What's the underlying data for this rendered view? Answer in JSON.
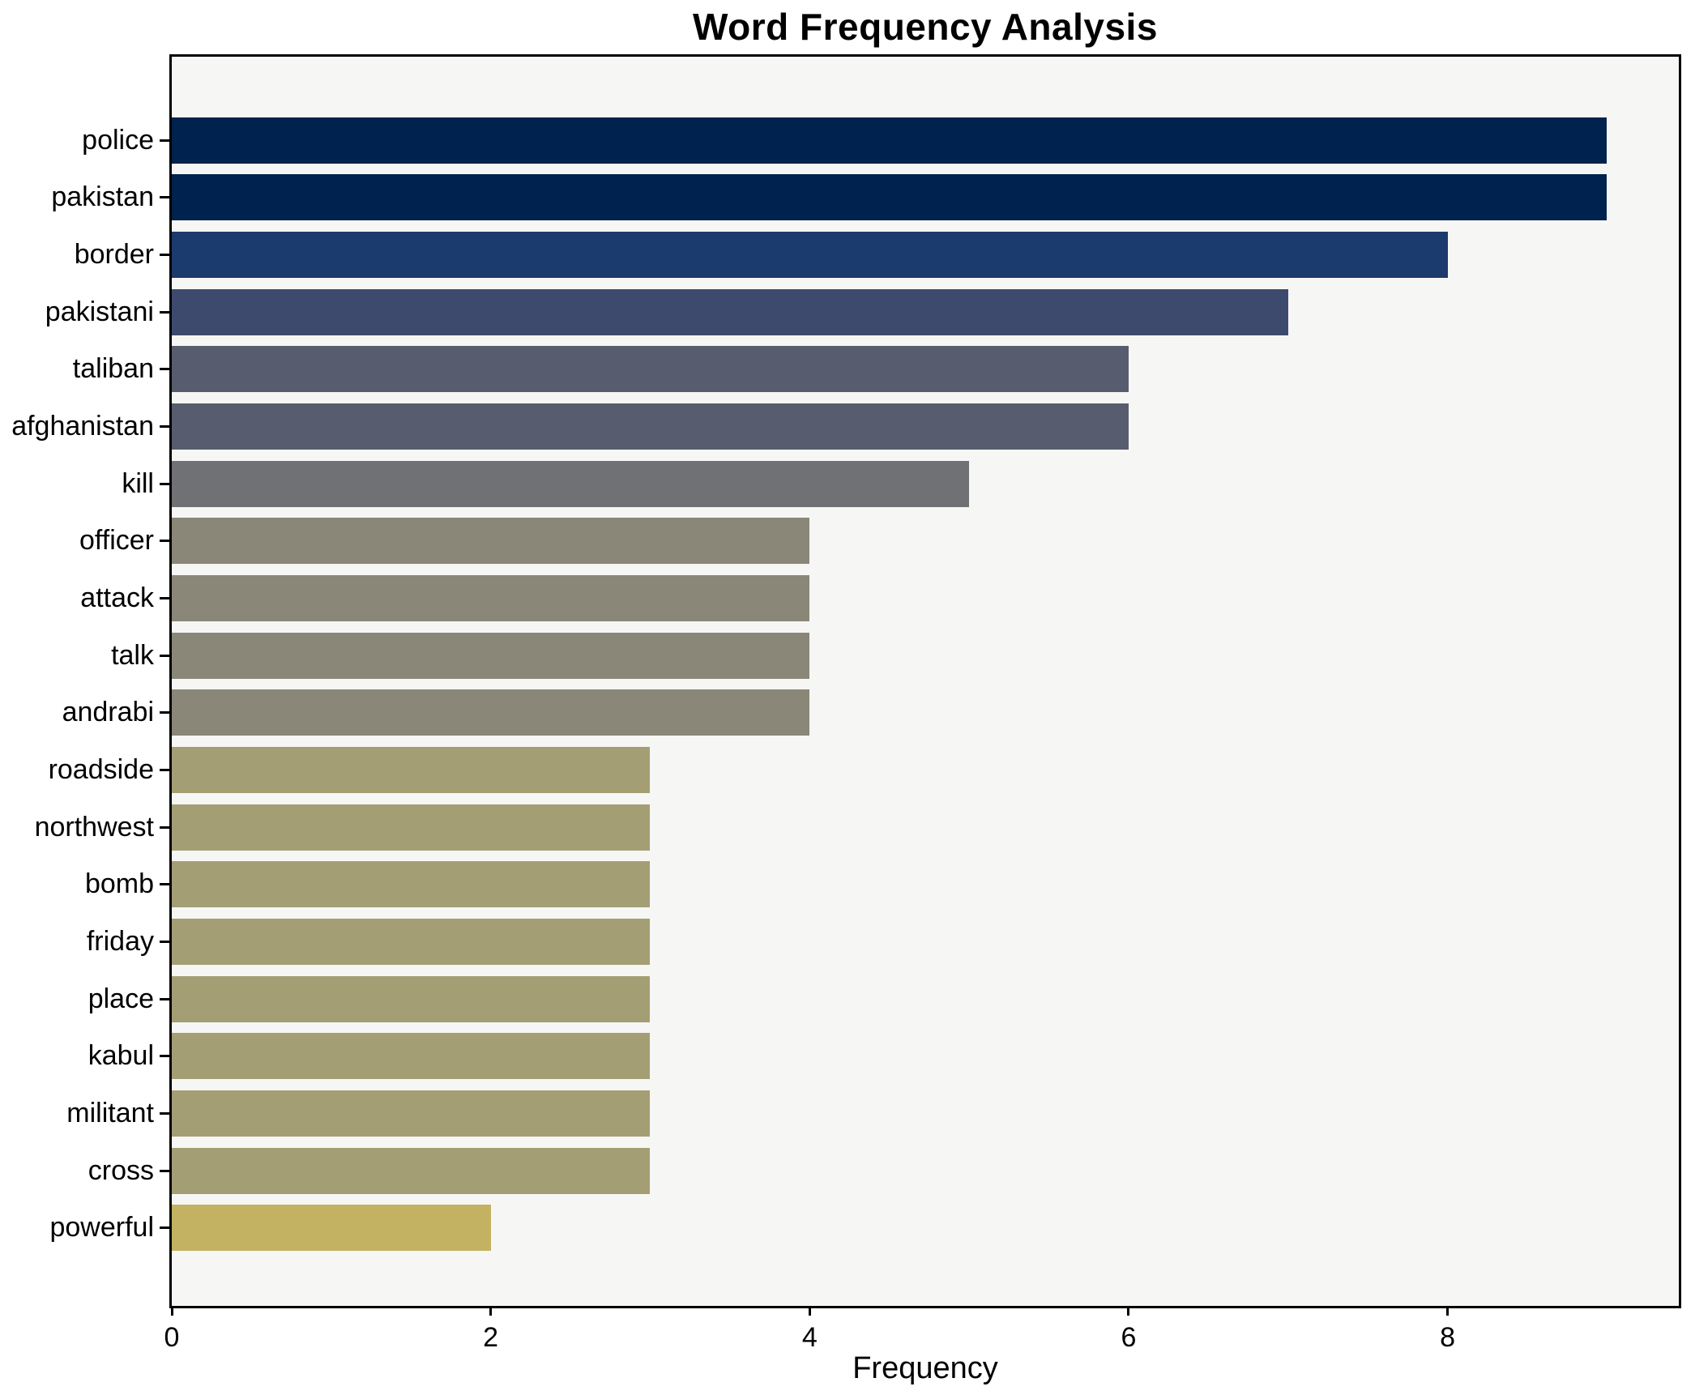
{
  "chart_data": {
    "type": "bar",
    "orientation": "horizontal",
    "title": "Word Frequency Analysis",
    "xlabel": "Frequency",
    "ylabel": "",
    "categories": [
      "police",
      "pakistan",
      "border",
      "pakistani",
      "taliban",
      "afghanistan",
      "kill",
      "officer",
      "attack",
      "talk",
      "andrabi",
      "roadside",
      "northwest",
      "bomb",
      "friday",
      "place",
      "kabul",
      "militant",
      "cross",
      "powerful"
    ],
    "values": [
      9,
      9,
      8,
      7,
      6,
      6,
      5,
      4,
      4,
      4,
      4,
      3,
      3,
      3,
      3,
      3,
      3,
      3,
      3,
      2
    ],
    "bar_colors": [
      "#00224e",
      "#00224e",
      "#1b3a6d",
      "#3e4a6d",
      "#575d6e",
      "#575d6e",
      "#6f7175",
      "#8a8779",
      "#8a8779",
      "#8a8779",
      "#8a8779",
      "#a49e74",
      "#a49e74",
      "#a49e74",
      "#a49e74",
      "#a49e74",
      "#a49e74",
      "#a49e74",
      "#a49e74",
      "#c3b261"
    ],
    "xticks": [
      0,
      2,
      4,
      6,
      8
    ],
    "xlim": [
      0,
      9.45
    ],
    "grid": false,
    "legend": false,
    "plot_background": "#f6f6f4",
    "figure_background": "#ffffff",
    "axis_color": "#000000"
  }
}
